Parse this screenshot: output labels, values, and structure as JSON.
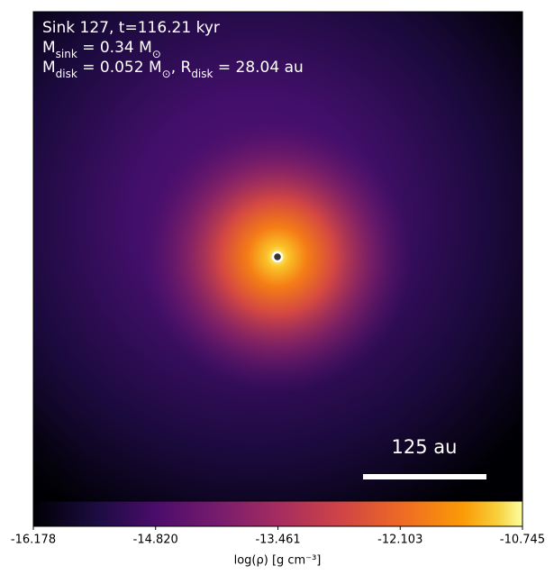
{
  "chart_data": {
    "type": "heatmap",
    "annotations": [
      [
        {
          "text": "Sink 127, t=116.21 kyr"
        }
      ],
      [
        {
          "text": "M"
        },
        {
          "sub": "sink"
        },
        {
          "text": " = 0.34 M"
        },
        {
          "sub": "⊙"
        }
      ],
      [
        {
          "text": "M"
        },
        {
          "sub": "disk"
        },
        {
          "text": " = 0.052 M"
        },
        {
          "sub": "⊙"
        },
        {
          "text": ", R"
        },
        {
          "sub": "disk"
        },
        {
          "text": " = 28.04 au"
        }
      ]
    ],
    "scale_bar_label": "125 au",
    "colormap": "inferno",
    "clim": [
      -16.178,
      -10.745
    ],
    "cticks": [
      {
        "value": -16.178,
        "label": "-16.178"
      },
      {
        "value": -14.82,
        "label": "-14.820"
      },
      {
        "value": -13.461,
        "label": "-13.461"
      },
      {
        "value": -12.103,
        "label": "-12.103"
      },
      {
        "value": -10.745,
        "label": "-10.745"
      }
    ],
    "colorbar_label": "log(ρ) [g cm⁻³]"
  }
}
